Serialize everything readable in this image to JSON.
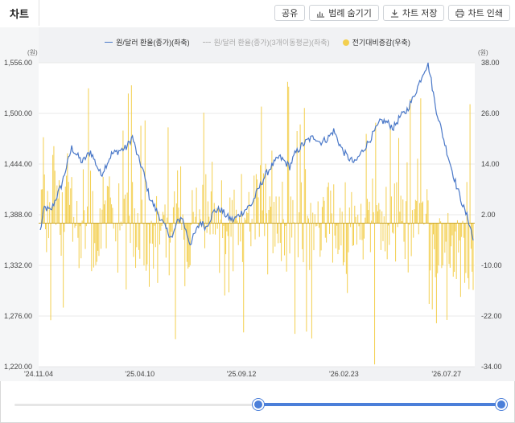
{
  "tab_label": "차트",
  "toolbar": {
    "share": "공유",
    "legend_hide": "범례 숨기기",
    "chart_save": "차트 저장",
    "chart_print": "차트 인쇄"
  },
  "legend": {
    "series1": "원/달러 환율(종가)(좌축)",
    "series2": "원/달러 환율(종가)(3개이동평균)(좌축)",
    "series3": "전기대비증감(우축)"
  },
  "colors": {
    "line": "#4a78c8",
    "bar": "#f3cf4f",
    "ma": "#b5b5b5",
    "slider": "#4b7fd9"
  },
  "slider": {
    "start_fraction": 0.5,
    "end_fraction": 1.0
  },
  "chart_data": {
    "type": "bar",
    "left_unit": "(원)",
    "right_unit": "(원)",
    "left_axis": {
      "range": [
        1220,
        1556
      ],
      "ticks": [
        "1,556.00",
        "1,500.00",
        "1,444.00",
        "1,388.00",
        "1,332.00",
        "1,276.00",
        "1,220.00"
      ]
    },
    "right_axis": {
      "range": [
        -34,
        38
      ],
      "ticks": [
        "38.00",
        "26.00",
        "14.00",
        "2.00",
        "-10.00",
        "-22.00",
        "-34.00"
      ]
    },
    "x_labels": [
      "'24.11.04",
      "'25.04.10",
      "'25.09.12",
      "'26.02.23",
      "'26.07.27"
    ],
    "series": [
      {
        "name": "원/달러 환율(종가)(좌축)",
        "type": "line",
        "keypoints": [
          [
            0,
            1370
          ],
          [
            4,
            1396
          ],
          [
            10,
            1392
          ],
          [
            20,
            1420
          ],
          [
            30,
            1462
          ],
          [
            40,
            1446
          ],
          [
            48,
            1458
          ],
          [
            58,
            1432
          ],
          [
            68,
            1455
          ],
          [
            82,
            1462
          ],
          [
            88,
            1474
          ],
          [
            93,
            1452
          ],
          [
            98,
            1437
          ],
          [
            104,
            1408
          ],
          [
            112,
            1390
          ],
          [
            120,
            1372
          ],
          [
            126,
            1362
          ],
          [
            130,
            1378
          ],
          [
            135,
            1386
          ],
          [
            139,
            1370
          ],
          [
            143,
            1356
          ],
          [
            148,
            1368
          ],
          [
            153,
            1380
          ],
          [
            158,
            1374
          ],
          [
            166,
            1392
          ],
          [
            172,
            1394
          ],
          [
            178,
            1386
          ],
          [
            184,
            1382
          ],
          [
            190,
            1388
          ],
          [
            196,
            1394
          ],
          [
            202,
            1400
          ],
          [
            208,
            1416
          ],
          [
            214,
            1430
          ],
          [
            220,
            1441
          ],
          [
            224,
            1446
          ],
          [
            228,
            1452
          ],
          [
            233,
            1447
          ],
          [
            238,
            1441
          ],
          [
            243,
            1455
          ],
          [
            249,
            1464
          ],
          [
            256,
            1471
          ],
          [
            262,
            1474
          ],
          [
            267,
            1468
          ],
          [
            274,
            1472
          ],
          [
            280,
            1481
          ],
          [
            284,
            1470
          ],
          [
            288,
            1460
          ],
          [
            293,
            1452
          ],
          [
            300,
            1445
          ],
          [
            306,
            1456
          ],
          [
            313,
            1468
          ],
          [
            319,
            1480
          ],
          [
            325,
            1492
          ],
          [
            331,
            1490
          ],
          [
            337,
            1484
          ],
          [
            343,
            1496
          ],
          [
            349,
            1502
          ],
          [
            355,
            1515
          ],
          [
            361,
            1532
          ],
          [
            366,
            1547
          ],
          [
            370,
            1555
          ],
          [
            373,
            1536
          ],
          [
            377,
            1508
          ],
          [
            382,
            1485
          ],
          [
            387,
            1462
          ],
          [
            392,
            1441
          ],
          [
            397,
            1420
          ],
          [
            401,
            1406
          ],
          [
            405,
            1392
          ],
          [
            408,
            1384
          ],
          [
            410,
            1376
          ],
          [
            413,
            1360
          ]
        ],
        "n_points": 414
      },
      {
        "name": "전기대비증감(우축)",
        "type": "bar",
        "summary": "daily change values between -34 and 38, mostly within -12 and 14",
        "n_points": 414
      }
    ]
  }
}
